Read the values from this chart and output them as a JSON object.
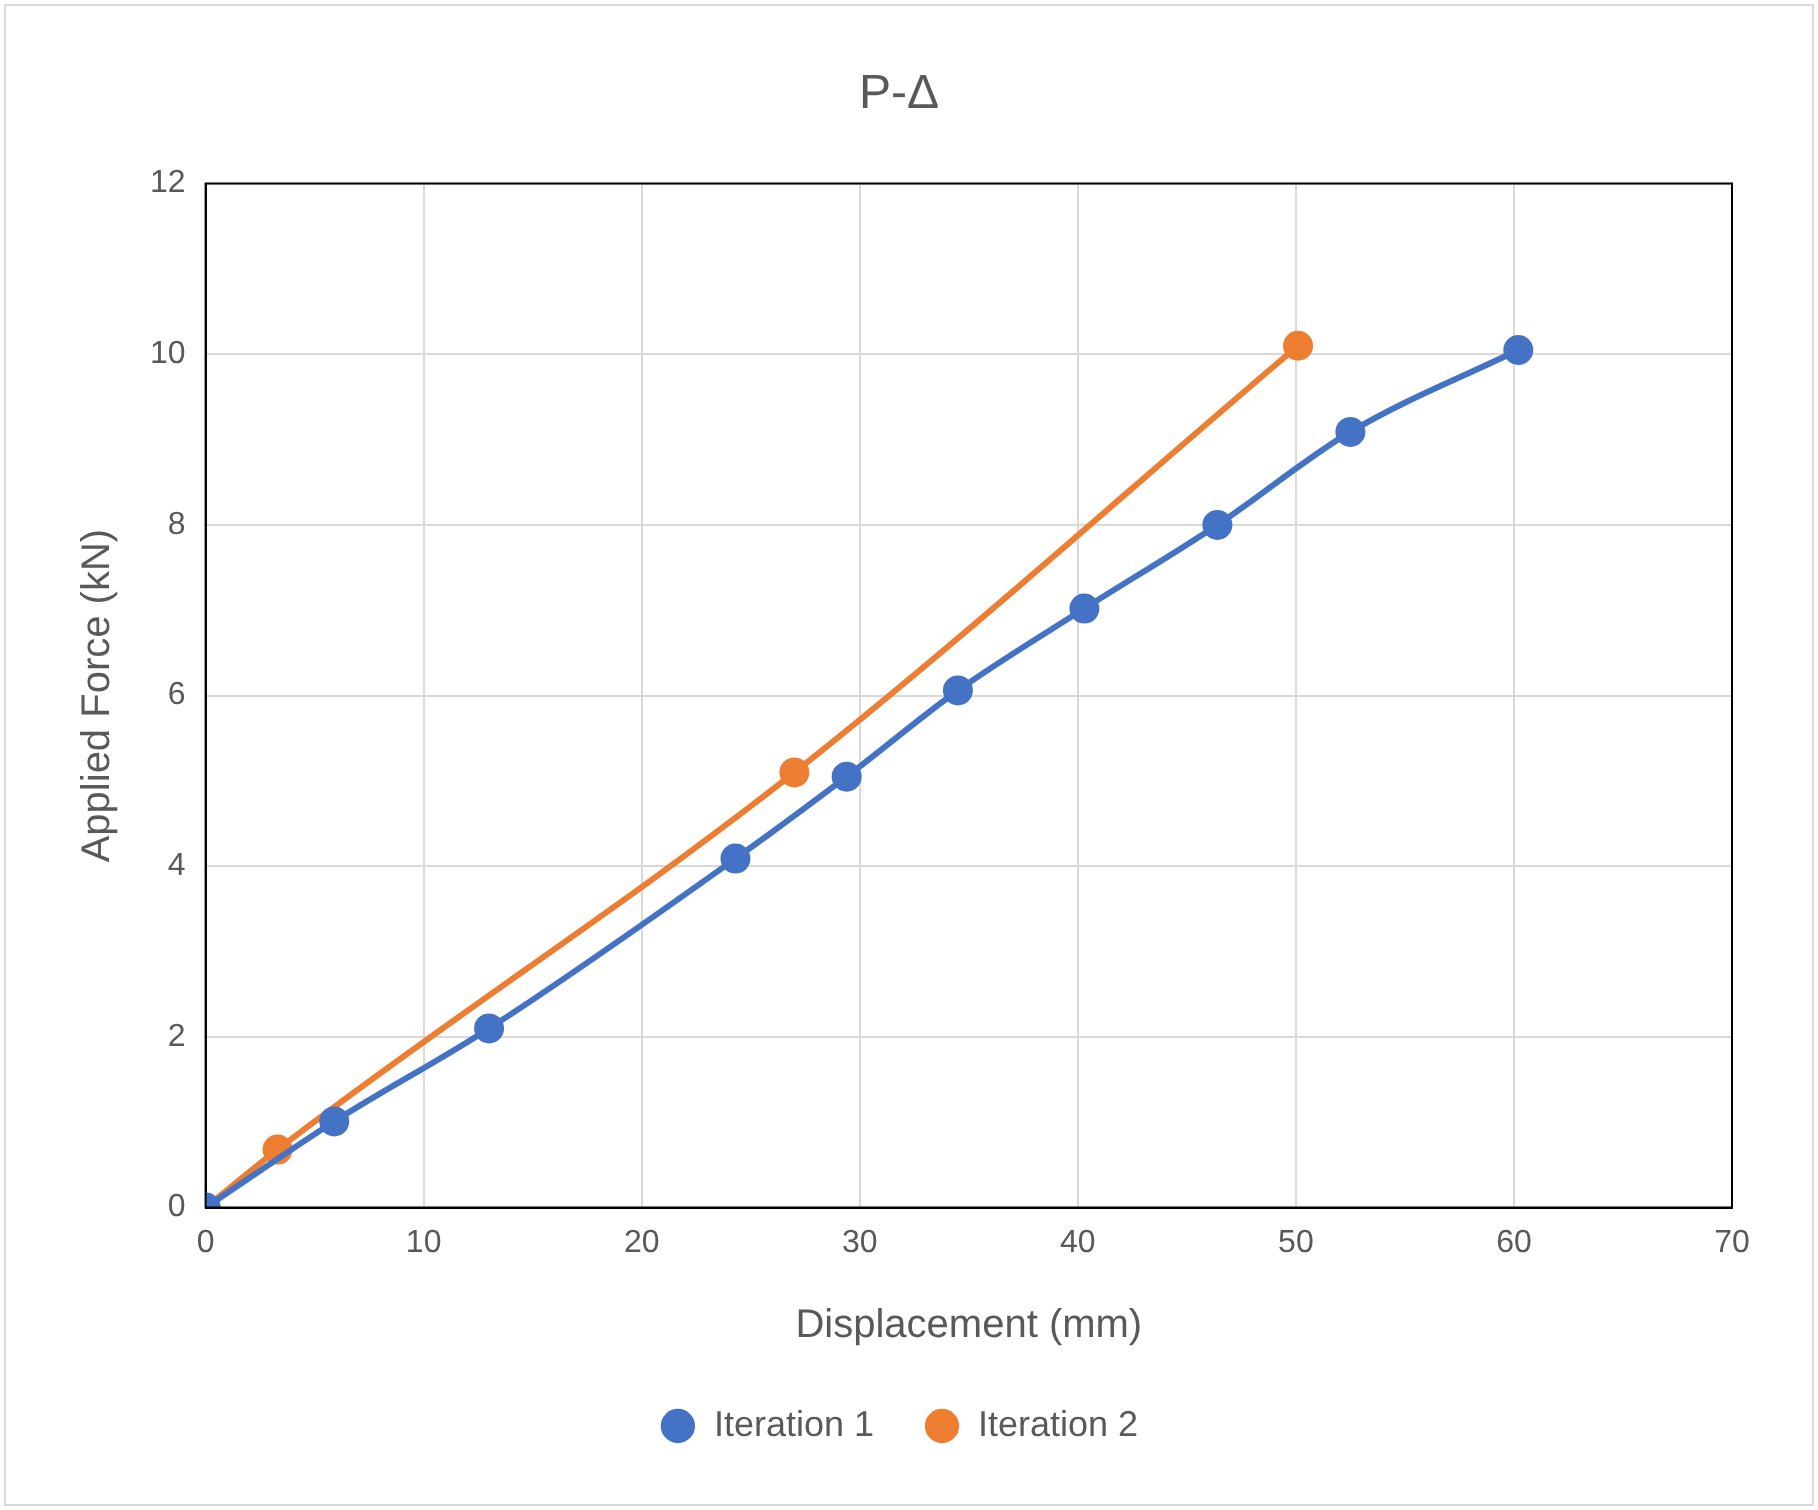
{
  "chart_data": {
    "type": "line",
    "title": "P-Δ",
    "xlabel": "Displacement (mm)",
    "ylabel": "Applied Force (kN)",
    "xlim": [
      0,
      70
    ],
    "xticks": [
      0,
      10,
      20,
      30,
      40,
      50,
      60,
      70
    ],
    "ylim": [
      0,
      12
    ],
    "yticks": [
      0,
      2,
      4,
      6,
      8,
      10,
      12
    ],
    "grid": true,
    "legend": "bottom",
    "marker": "circle",
    "line_style": "solid",
    "series": [
      {
        "name": "Iteration 1",
        "color": "#4472c4",
        "x": [
          0,
          5.9,
          13.0,
          24.3,
          29.4,
          34.5,
          40.3,
          46.4,
          52.5,
          60.2
        ],
        "values": [
          0,
          1.01,
          2.1,
          4.09,
          5.05,
          6.06,
          7.02,
          8.0,
          9.09,
          10.05
        ]
      },
      {
        "name": "Iteration 2",
        "color": "#ed7d31",
        "x": [
          0,
          3.3,
          27.0,
          50.1
        ],
        "values": [
          0,
          0.68,
          5.1,
          10.1
        ]
      }
    ]
  }
}
